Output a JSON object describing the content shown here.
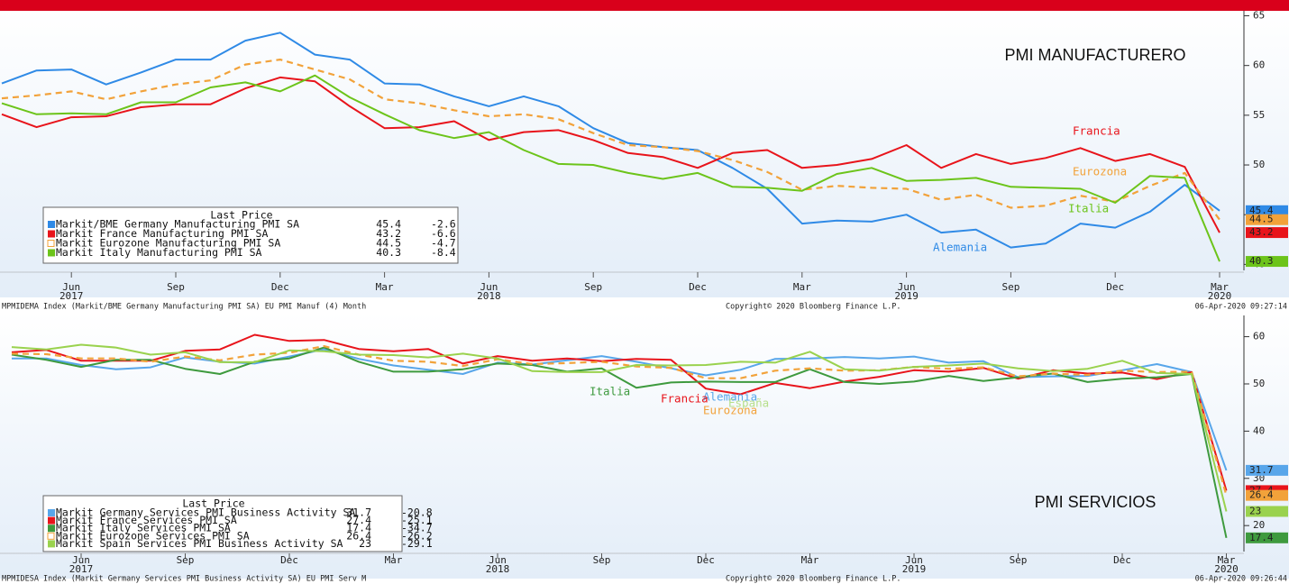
{
  "chart_data": [
    {
      "type": "line",
      "title": "PMI MANUFACTURERO",
      "legend_title": "Last Price",
      "categories": [
        null,
        null,
        "Jun",
        null,
        null,
        "Sep",
        null,
        null,
        "Dec",
        null,
        null,
        "Mar",
        null,
        null,
        "Jun",
        null,
        null,
        "Sep",
        null,
        null,
        "Dec",
        null,
        null,
        "Mar",
        null,
        null,
        "Jun",
        null,
        null,
        "Sep",
        null,
        null,
        "Dec",
        null,
        null,
        "Mar"
      ],
      "x_sublabels": [
        null,
        null,
        "2017",
        null,
        null,
        null,
        null,
        null,
        null,
        null,
        null,
        null,
        null,
        null,
        "2018",
        null,
        null,
        null,
        null,
        null,
        null,
        null,
        null,
        null,
        null,
        null,
        "2019",
        null,
        null,
        null,
        null,
        null,
        null,
        null,
        null,
        "2020"
      ],
      "ylim": [
        39.4,
        65.5
      ],
      "yticks": [
        40,
        45,
        50,
        55,
        60,
        65
      ],
      "grid": false,
      "series": [
        {
          "name": "Markit/BME Germany Manufacturing PMI SA",
          "color": "#2f8ae6",
          "dashed": false,
          "change": -2.6,
          "values": [
            58.2,
            59.5,
            59.6,
            58.1,
            59.3,
            60.6,
            60.6,
            62.5,
            63.3,
            61.1,
            60.6,
            58.2,
            58.1,
            56.9,
            55.9,
            56.9,
            55.9,
            53.7,
            52.2,
            51.8,
            51.5,
            49.7,
            47.6,
            44.1,
            44.4,
            44.3,
            45.0,
            43.2,
            43.5,
            41.7,
            42.1,
            44.1,
            43.7,
            45.3,
            48.0,
            45.4
          ]
        },
        {
          "name": "Markit France Manufacturing PMI SA",
          "color": "#e8141b",
          "dashed": false,
          "change": -6.6,
          "values": [
            55.1,
            53.8,
            54.8,
            54.9,
            55.8,
            56.1,
            56.1,
            57.7,
            58.8,
            58.4,
            55.9,
            53.7,
            53.8,
            54.4,
            52.5,
            53.3,
            53.5,
            52.5,
            51.2,
            50.8,
            49.7,
            51.2,
            51.5,
            49.7,
            50.0,
            50.6,
            52.0,
            49.7,
            51.1,
            50.1,
            50.7,
            51.7,
            50.4,
            51.1,
            49.8,
            43.2
          ]
        },
        {
          "name": "Markit Eurozone Manufacturing PMI SA",
          "color": "#f2a23a",
          "dashed": true,
          "change": -4.7,
          "values": [
            56.7,
            57.0,
            57.4,
            56.6,
            57.4,
            58.1,
            58.5,
            60.1,
            60.6,
            59.6,
            58.6,
            56.6,
            56.2,
            55.5,
            54.9,
            55.1,
            54.6,
            53.2,
            52.0,
            51.8,
            51.4,
            50.5,
            49.3,
            47.5,
            47.9,
            47.7,
            47.6,
            46.5,
            47.0,
            45.7,
            45.9,
            46.9,
            46.3,
            47.9,
            49.2,
            44.5
          ]
        },
        {
          "name": "Markit Italy Manufacturing PMI SA",
          "color": "#6cc41a",
          "dashed": false,
          "change": -8.4,
          "values": [
            56.2,
            55.1,
            55.2,
            55.1,
            56.3,
            56.3,
            57.8,
            58.3,
            57.4,
            59.0,
            56.8,
            55.1,
            53.5,
            52.7,
            53.3,
            51.5,
            50.1,
            50.0,
            49.2,
            48.6,
            49.2,
            47.8,
            47.7,
            47.4,
            49.1,
            49.7,
            48.4,
            48.5,
            48.7,
            47.8,
            47.7,
            47.6,
            46.2,
            48.9,
            48.7,
            40.3
          ]
        }
      ],
      "annotations": [
        {
          "text": "Francia",
          "color": "#e8141b"
        },
        {
          "text": "Eurozona",
          "color": "#f2a23a"
        },
        {
          "text": "Italia",
          "color": "#6cc41a"
        },
        {
          "text": "Alemania",
          "color": "#2f8ae6"
        }
      ],
      "footer_left": "MPMIDEMA Index (Markit/BME Germany Manufacturing PMI SA) EU PMI Manuf (4)  Month",
      "copyright": "Copyright© 2020 Bloomberg Finance L.P.",
      "timestamp": "06-Apr-2020 09:27:14"
    },
    {
      "type": "line",
      "title": "PMI SERVICIOS",
      "legend_title": "Last Price",
      "categories": [
        null,
        null,
        "Jun",
        null,
        null,
        "Sep",
        null,
        null,
        "Dec",
        null,
        null,
        "Mar",
        null,
        null,
        "Jun",
        null,
        null,
        "Sep",
        null,
        null,
        "Dec",
        null,
        null,
        "Mar",
        null,
        null,
        "Jun",
        null,
        null,
        "Sep",
        null,
        null,
        "Dec",
        null,
        null,
        "Mar"
      ],
      "x_sublabels": [
        null,
        null,
        "2017",
        null,
        null,
        null,
        null,
        null,
        null,
        null,
        null,
        null,
        null,
        null,
        "2018",
        null,
        null,
        null,
        null,
        null,
        null,
        null,
        null,
        null,
        null,
        null,
        "2019",
        null,
        null,
        null,
        null,
        null,
        null,
        null,
        null,
        "2020"
      ],
      "ylim": [
        14.5,
        64.5
      ],
      "yticks": [
        20,
        30,
        40,
        50,
        60
      ],
      "grid": false,
      "series": [
        {
          "name": "Markit Germany Services PMI Business Activity SA",
          "color": "#58a6ea",
          "dashed": false,
          "change": -20.8,
          "values": [
            55.4,
            55.4,
            54.0,
            53.1,
            53.5,
            55.6,
            54.7,
            54.3,
            55.8,
            57.3,
            55.3,
            53.9,
            53.0,
            52.1,
            54.5,
            54.1,
            55.0,
            55.9,
            54.7,
            53.3,
            51.8,
            53.0,
            55.3,
            55.4,
            55.7,
            55.4,
            55.8,
            54.5,
            54.8,
            51.4,
            51.6,
            51.7,
            52.9,
            54.2,
            52.5,
            31.7
          ]
        },
        {
          "name": "Markit France Services PMI SA",
          "color": "#e8141b",
          "dashed": false,
          "change": -25.1,
          "values": [
            56.7,
            57.2,
            54.9,
            54.9,
            54.9,
            57.0,
            57.3,
            60.4,
            59.1,
            59.3,
            57.4,
            56.9,
            57.4,
            54.3,
            55.9,
            54.9,
            55.4,
            54.8,
            55.3,
            55.1,
            49.0,
            47.8,
            50.2,
            49.1,
            50.5,
            51.5,
            52.9,
            52.6,
            53.4,
            51.1,
            52.9,
            52.2,
            52.4,
            51.0,
            52.5,
            27.4
          ]
        },
        {
          "name": "Markit Italy Services PMI SA",
          "color": "#3e9a3e",
          "dashed": false,
          "change": -34.7,
          "values": [
            56.2,
            55.1,
            53.6,
            55.1,
            55.1,
            53.2,
            52.1,
            54.7,
            55.4,
            57.7,
            54.7,
            52.6,
            52.6,
            53.1,
            54.3,
            54.0,
            52.6,
            53.3,
            49.2,
            50.3,
            50.5,
            50.4,
            50.4,
            53.1,
            50.4,
            50.0,
            50.5,
            51.7,
            50.6,
            51.4,
            52.2,
            50.4,
            51.1,
            51.4,
            52.1,
            17.4
          ]
        },
        {
          "name": "Markit Eurozone Services PMI SA",
          "color": "#f2a23a",
          "dashed": true,
          "change": -26.2,
          "values": [
            56.4,
            56.3,
            55.4,
            55.4,
            54.7,
            55.8,
            55.0,
            56.2,
            56.6,
            58.0,
            56.2,
            54.9,
            54.7,
            53.8,
            55.2,
            54.2,
            54.4,
            54.7,
            53.7,
            53.4,
            51.2,
            51.2,
            52.8,
            53.3,
            52.8,
            52.9,
            53.6,
            53.2,
            53.5,
            51.6,
            52.2,
            51.9,
            52.8,
            52.5,
            52.6,
            26.4
          ]
        },
        {
          "name": "Markit Spain Services PMI Business Activity SA",
          "color": "#9ad24e",
          "dashed": false,
          "change": -29.1,
          "values": [
            57.8,
            57.3,
            58.3,
            57.7,
            56.2,
            56.7,
            54.6,
            54.6,
            57.1,
            56.9,
            56.2,
            56.1,
            55.6,
            56.4,
            55.4,
            52.7,
            52.5,
            52.5,
            54.0,
            53.9,
            54.0,
            54.7,
            54.5,
            56.8,
            53.1,
            52.8,
            53.6,
            53.9,
            54.3,
            53.3,
            52.7,
            53.2,
            54.9,
            52.3,
            52.1,
            23.0
          ]
        }
      ],
      "annotations": [
        {
          "text": "Alemania",
          "color": "#58a6ea"
        },
        {
          "text": "España",
          "color": "#b6df8a"
        },
        {
          "text": "Eurozona",
          "color": "#f2a23a"
        },
        {
          "text": "Italia",
          "color": "#3e9a3e"
        },
        {
          "text": "Francia",
          "color": "#e8141b"
        }
      ],
      "footer_left": "MPMIDESA Index (Markit Germany Services PMI Business Activity SA) EU PMI Serv  M",
      "copyright": "Copyright© 2020 Bloomberg Finance L.P.",
      "timestamp": "06-Apr-2020 09:26:44"
    }
  ]
}
